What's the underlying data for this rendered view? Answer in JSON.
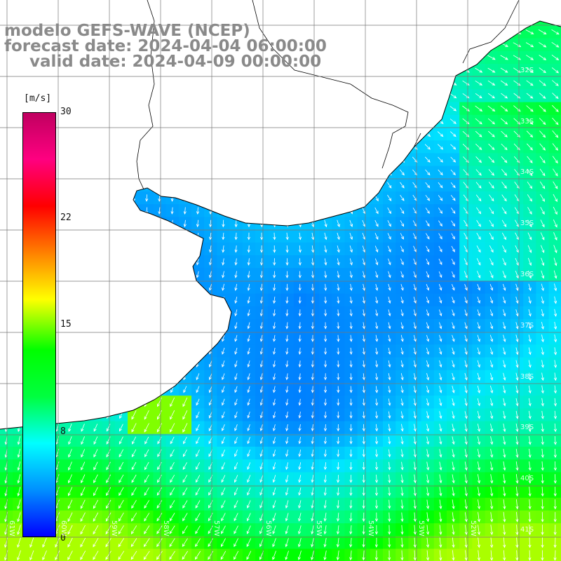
{
  "title": {
    "model": "modelo GEFS-WAVE (NCEP)",
    "forecast": "forecast date: 2024-04-04 06:00:00",
    "valid": "valid date: 2024-04-09 00:00:00"
  },
  "colorbar": {
    "unit": "[m/s]",
    "ticks": [
      "30",
      "22",
      "15",
      "8",
      "0"
    ],
    "min": 0,
    "max": 30,
    "colors": [
      "#0000ff",
      "#0090ff",
      "#00ffff",
      "#00ff40",
      "#00ff00",
      "#ffff00",
      "#ff8000",
      "#ff0000",
      "#ff0080",
      "#c00060"
    ]
  },
  "map": {
    "lat_labels": [
      "32S",
      "33S",
      "34S",
      "35S",
      "36S",
      "37S",
      "38S",
      "39S",
      "40S",
      "41S"
    ],
    "lon_labels": [
      "61W",
      "60W",
      "59W",
      "58W",
      "57W",
      "56W",
      "55W",
      "54W",
      "53W",
      "52W"
    ],
    "land_color": "#ffffff",
    "coast_color": "#000000",
    "grid_color": "#777777",
    "arrow_color": "#ffffff"
  }
}
